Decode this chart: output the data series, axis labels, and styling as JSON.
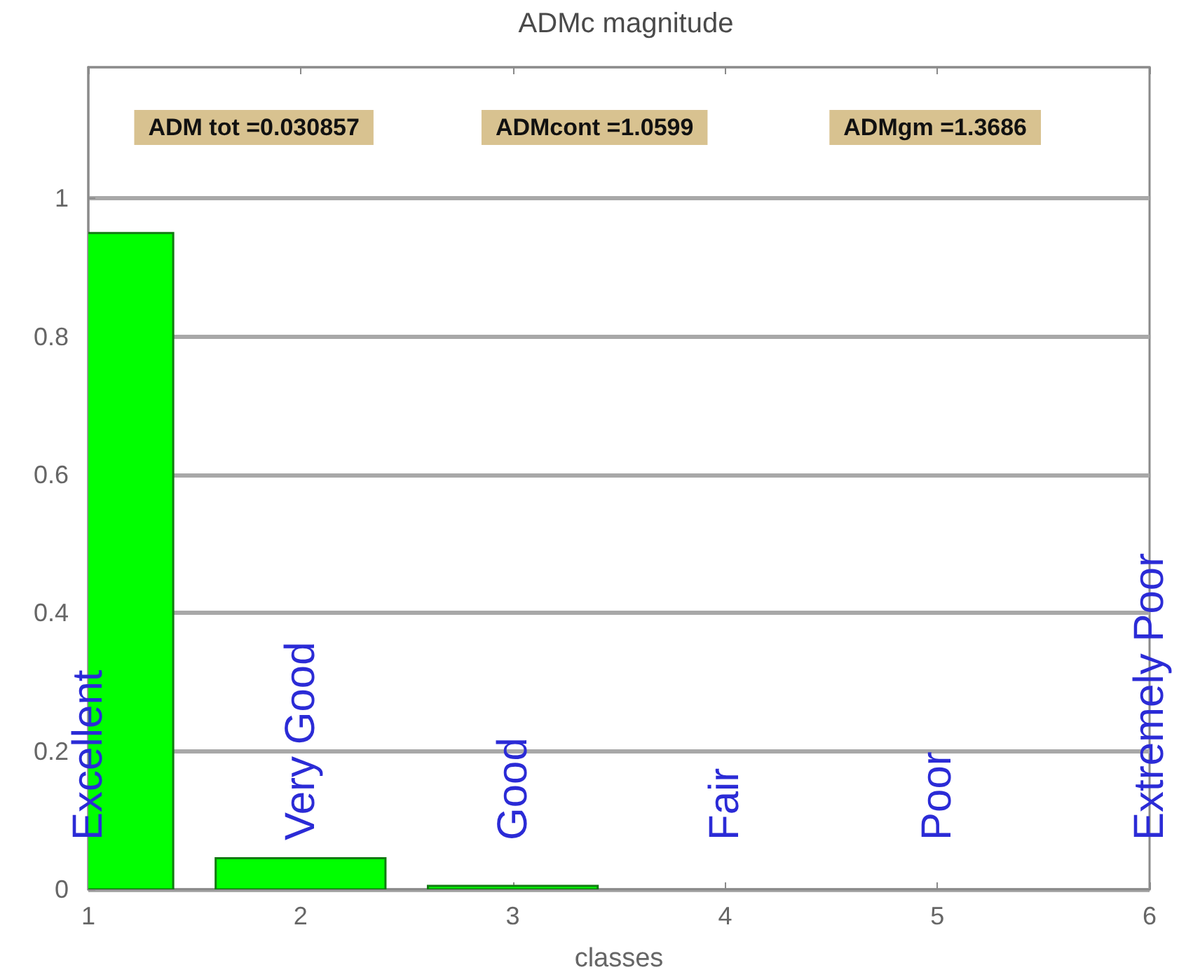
{
  "chart_data": {
    "type": "bar",
    "title": "ADMc magnitude",
    "xlabel": "classes",
    "x": [
      1,
      2,
      3
    ],
    "values": [
      0.95,
      0.045,
      0.005
    ],
    "color": "#00ff00",
    "xlim": [
      1,
      6
    ],
    "xticks": [
      1,
      2,
      3,
      4,
      5,
      6
    ],
    "ylim": [
      0,
      1.19
    ],
    "yticks": [
      0,
      0.2,
      0.4,
      0.6,
      0.8,
      1
    ],
    "grid": "y",
    "annotations": [
      "ADM tot =0.030857",
      "ADMcont =1.0599",
      "ADMgm =1.3686",
      "Excellent",
      "Very Good",
      "Good",
      "Fair",
      "Poor",
      "Extremely Poor"
    ]
  }
}
